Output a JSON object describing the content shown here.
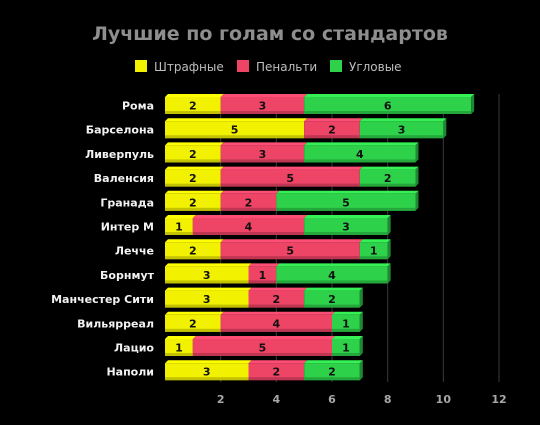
{
  "chart_data": {
    "type": "bar",
    "orientation": "horizontal",
    "stacked": true,
    "title": "Лучшие по голам со стандартов",
    "categories": [
      "Рома",
      "Барселона",
      "Ливерпуль",
      "Валенсия",
      "Гранада",
      "Интер М",
      "Лечче",
      "Борнмут",
      "Манчестер Сити",
      "Вильярреал",
      "Лацио",
      "Наполи"
    ],
    "series": [
      {
        "name": "Штрафные",
        "color": "#f2f200",
        "values": [
          2,
          5,
          2,
          2,
          2,
          1,
          2,
          3,
          3,
          2,
          1,
          3
        ]
      },
      {
        "name": "Пенальти",
        "color": "#ee4466",
        "values": [
          3,
          2,
          3,
          5,
          2,
          4,
          5,
          1,
          2,
          4,
          5,
          2
        ]
      },
      {
        "name": "Угловые",
        "color": "#2ed24a",
        "values": [
          6,
          3,
          4,
          2,
          5,
          3,
          1,
          4,
          2,
          1,
          1,
          2
        ]
      }
    ],
    "xlim": [
      0,
      12
    ],
    "xticks": [
      2,
      4,
      6,
      8,
      10,
      12
    ],
    "grid": true,
    "legend_position": "top",
    "data_labels": true
  }
}
